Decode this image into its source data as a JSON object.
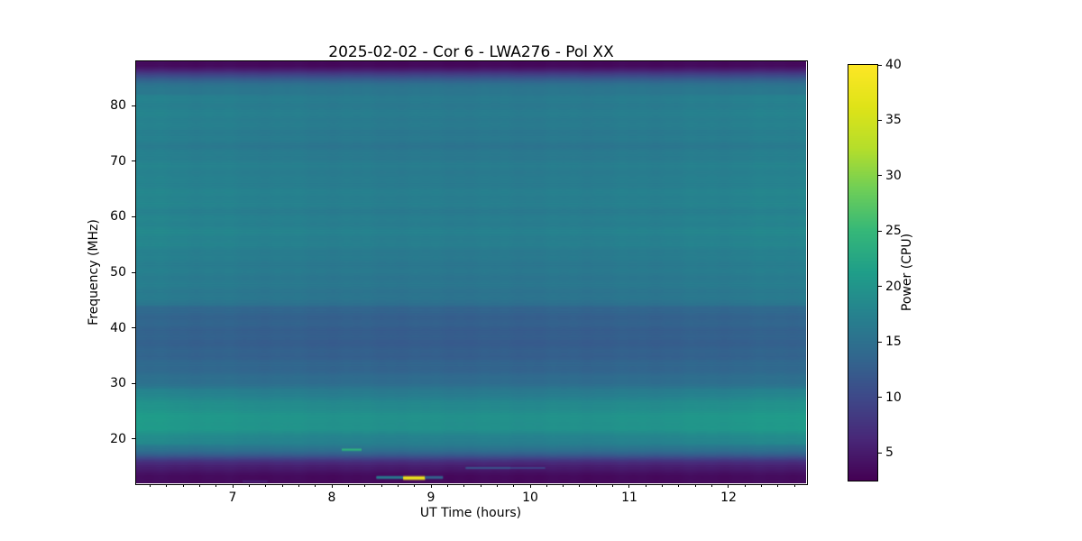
{
  "chart_data": {
    "type": "heatmap",
    "title": "2025-02-02 - Cor 6 - LWA276 - Pol XX",
    "xlabel": "UT Time (hours)",
    "ylabel": "Frequency (MHz)",
    "colorbar_label": "Power (CPU)",
    "colormap": "viridis",
    "x_range": [
      6.027,
      12.782
    ],
    "y_range": [
      12.05,
      87.95
    ],
    "clim": [
      2.5,
      40
    ],
    "x_ticks": [
      7,
      8,
      9,
      10,
      11,
      12
    ],
    "x_minor_per_hour": 6,
    "y_ticks": [
      20,
      30,
      40,
      50,
      60,
      70,
      80
    ],
    "colorbar_ticks": [
      5,
      10,
      15,
      20,
      25,
      30,
      35,
      40
    ],
    "grid": false,
    "viridis_stops": [
      [
        0.0,
        "#440154"
      ],
      [
        0.1,
        "#482878"
      ],
      [
        0.2,
        "#3e4989"
      ],
      [
        0.3,
        "#31688e"
      ],
      [
        0.4,
        "#26828e"
      ],
      [
        0.5,
        "#1f9e89"
      ],
      [
        0.6,
        "#35b779"
      ],
      [
        0.7,
        "#6ece58"
      ],
      [
        0.8,
        "#b5de2b"
      ],
      [
        0.9,
        "#dfe318"
      ],
      [
        1.0,
        "#fde725"
      ]
    ],
    "freq_profile": [
      [
        88.0,
        3.0
      ],
      [
        87.2,
        3.5
      ],
      [
        86.4,
        5.5
      ],
      [
        85.6,
        9.0
      ],
      [
        84.8,
        12.5
      ],
      [
        84.0,
        14.5
      ],
      [
        83.0,
        15.8
      ],
      [
        81.5,
        16.3
      ],
      [
        80.0,
        16.3
      ],
      [
        78.0,
        16.6
      ],
      [
        76.0,
        16.2
      ],
      [
        74.0,
        16.0
      ],
      [
        72.5,
        15.6
      ],
      [
        71.0,
        16.2
      ],
      [
        69.0,
        16.6
      ],
      [
        67.0,
        16.4
      ],
      [
        65.0,
        16.8
      ],
      [
        63.0,
        17.0
      ],
      [
        61.0,
        16.5
      ],
      [
        59.0,
        16.8
      ],
      [
        57.0,
        17.2
      ],
      [
        55.0,
        16.8
      ],
      [
        53.0,
        16.2
      ],
      [
        51.0,
        16.0
      ],
      [
        49.0,
        15.8
      ],
      [
        47.0,
        15.6
      ],
      [
        45.5,
        15.3
      ],
      [
        44.2,
        15.0
      ],
      [
        43.6,
        13.2
      ],
      [
        42.0,
        12.9
      ],
      [
        40.0,
        12.6
      ],
      [
        38.0,
        12.3
      ],
      [
        36.0,
        12.5
      ],
      [
        34.0,
        13.0
      ],
      [
        32.0,
        13.6
      ],
      [
        30.0,
        14.6
      ],
      [
        28.8,
        15.8
      ],
      [
        27.5,
        17.2
      ],
      [
        26.0,
        18.3
      ],
      [
        24.5,
        19.2
      ],
      [
        23.0,
        19.6
      ],
      [
        21.8,
        19.2
      ],
      [
        20.8,
        18.2
      ],
      [
        19.8,
        17.2
      ],
      [
        18.8,
        16.4
      ],
      [
        18.0,
        15.2
      ],
      [
        17.2,
        12.5
      ],
      [
        16.5,
        9.5
      ],
      [
        15.8,
        7.0
      ],
      [
        15.0,
        5.2
      ],
      [
        14.2,
        4.2
      ],
      [
        13.0,
        3.4
      ],
      [
        12.0,
        3.0
      ]
    ],
    "edge_brightening": {
      "center": 9.4,
      "half_width": 3.4,
      "bands": [
        {
          "f": [
            19,
            29
          ],
          "amp": 1.6
        },
        {
          "f": [
            44,
            82
          ],
          "amp": 1.2
        },
        {
          "f": [
            29,
            44
          ],
          "amp": 0.8
        },
        {
          "f": [
            12,
            19
          ],
          "amp": 0.3
        },
        {
          "f": [
            82,
            88
          ],
          "amp": 0.3
        }
      ]
    },
    "features": [
      {
        "name": "green-streak",
        "t": [
          8.1,
          8.3
        ],
        "f": 18.1,
        "df": 0.55,
        "power": 24
      },
      {
        "name": "blue-streak-left",
        "t": [
          8.45,
          8.72
        ],
        "f": 13.1,
        "df": 0.7,
        "power": 16
      },
      {
        "name": "yellow-burst",
        "t": [
          8.72,
          8.94
        ],
        "f": 13.0,
        "df": 0.9,
        "power": 38
      },
      {
        "name": "blue-streak-right",
        "t": [
          8.94,
          9.12
        ],
        "f": 13.1,
        "df": 0.7,
        "power": 13
      },
      {
        "name": "faint-blue-streak",
        "t": [
          9.35,
          9.8
        ],
        "f": 14.8,
        "df": 0.5,
        "power": 11
      },
      {
        "name": "faint-blue-streak-2",
        "t": [
          9.8,
          10.15
        ],
        "f": 14.8,
        "df": 0.4,
        "power": 9.5
      },
      {
        "name": "faint-purple-streak",
        "t": [
          7.1,
          7.35
        ],
        "f": 12.4,
        "df": 0.5,
        "power": 5.5
      }
    ]
  }
}
